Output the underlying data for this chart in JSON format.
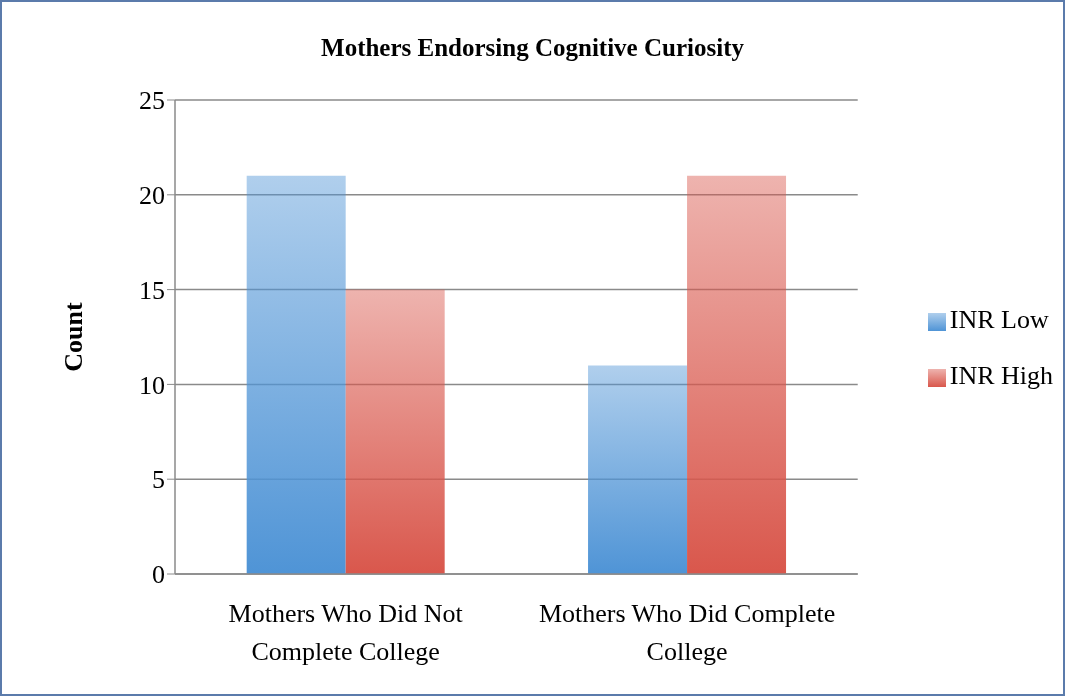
{
  "chart_data": {
    "type": "bar",
    "title": "Mothers Endorsing Cognitive Curiosity",
    "ylabel": "Count",
    "categories": [
      "Mothers Who Did Not Complete College",
      "Mothers Who Did Complete College"
    ],
    "series": [
      {
        "name": "INR Low",
        "color": "#4f94d6",
        "values": [
          21,
          11
        ]
      },
      {
        "name": "INR High",
        "color": "#d9574c",
        "values": [
          15,
          21
        ]
      }
    ],
    "ylim": [
      0,
      25
    ],
    "yticks": [
      0,
      5,
      10,
      15,
      20,
      25
    ],
    "grid": "y",
    "legend": "right"
  }
}
